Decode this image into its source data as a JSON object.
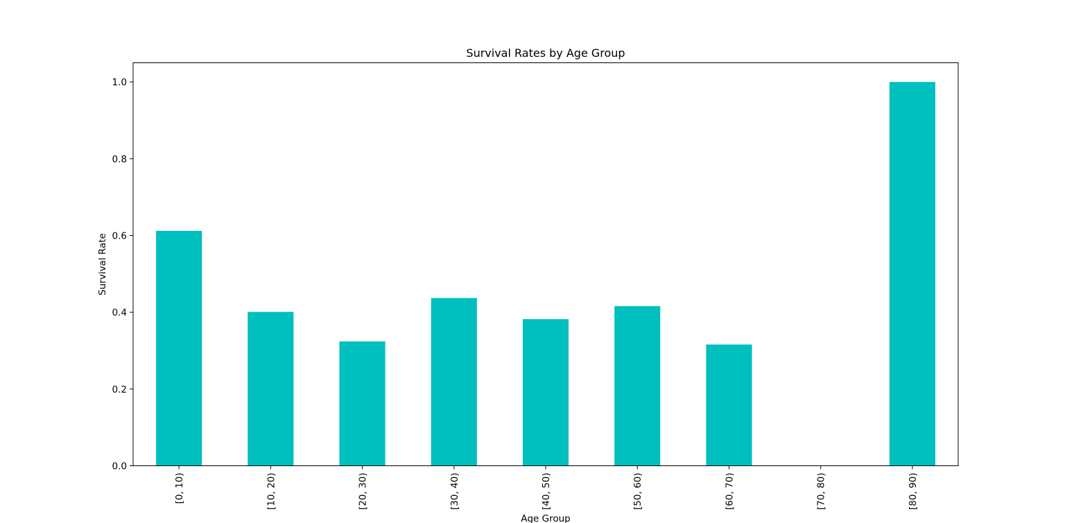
{
  "chart_data": {
    "type": "bar",
    "title": "Survival Rates by Age Group",
    "xlabel": "Age Group",
    "ylabel": "Survival Rate",
    "categories": [
      "[0, 10)",
      "[10, 20)",
      "[20, 30)",
      "[30, 40)",
      "[40, 50)",
      "[50, 60)",
      "[60, 70)",
      "[70, 80)",
      "[80, 90)"
    ],
    "values": [
      0.612,
      0.401,
      0.324,
      0.437,
      0.382,
      0.416,
      0.316,
      0.0,
      1.0
    ],
    "ylim": [
      0,
      1.05
    ],
    "yticks": [
      0.0,
      0.2,
      0.4,
      0.6,
      0.8,
      1.0
    ],
    "ytick_labels": [
      "0.0",
      "0.2",
      "0.4",
      "0.6",
      "0.8",
      "1.0"
    ],
    "bar_color": "#00bfbf",
    "grid": false,
    "legend": "none"
  }
}
